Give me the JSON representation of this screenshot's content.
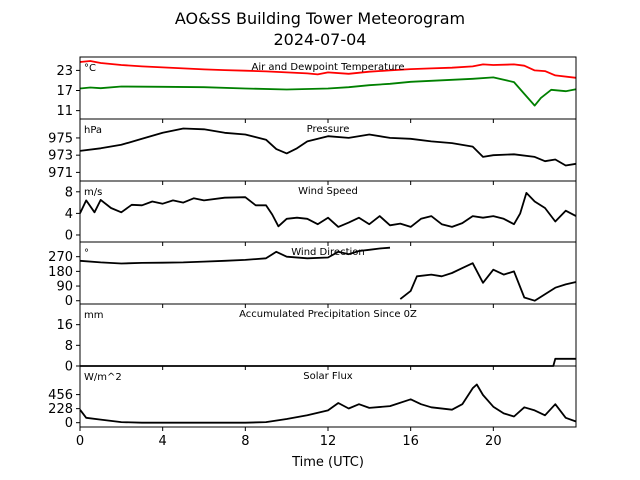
{
  "title_line1": "AO&SS Building Tower Meteorogram",
  "title_line2": "2024-07-04",
  "chart_data": {
    "type": "line",
    "xlabel": "Time (UTC)",
    "xlim": [
      0,
      24
    ],
    "x_ticks": [
      0,
      4,
      8,
      12,
      16,
      20
    ],
    "panels": [
      {
        "title": "Air and Dewpoint Temperature",
        "unit": "°C",
        "ylim": [
          8.5,
          27
        ],
        "y_ticks": [
          11,
          17,
          23
        ],
        "series": [
          {
            "color": "#ff0000",
            "points": [
              [
                0,
                25.5
              ],
              [
                0.5,
                25.8
              ],
              [
                1,
                25.2
              ],
              [
                2,
                24.6
              ],
              [
                3,
                24.2
              ],
              [
                4,
                23.9
              ],
              [
                5,
                23.6
              ],
              [
                6,
                23.3
              ],
              [
                7,
                23.1
              ],
              [
                8,
                22.9
              ],
              [
                9,
                22.7
              ],
              [
                10,
                22.4
              ],
              [
                11,
                22.1
              ],
              [
                11.5,
                21.8
              ],
              [
                12,
                22.4
              ],
              [
                13,
                22.0
              ],
              [
                14,
                22.6
              ],
              [
                15,
                23.0
              ],
              [
                16,
                23.4
              ],
              [
                17,
                23.6
              ],
              [
                18,
                23.8
              ],
              [
                19,
                24.2
              ],
              [
                19.5,
                24.8
              ],
              [
                20,
                24.6
              ],
              [
                21,
                24.8
              ],
              [
                21.5,
                24.4
              ],
              [
                22,
                23.0
              ],
              [
                22.5,
                22.8
              ],
              [
                23,
                21.5
              ],
              [
                24,
                20.8
              ]
            ]
          },
          {
            "color": "#008000",
            "points": [
              [
                0,
                17.6
              ],
              [
                0.5,
                17.9
              ],
              [
                1,
                17.7
              ],
              [
                2,
                18.2
              ],
              [
                4,
                18.1
              ],
              [
                6,
                18.0
              ],
              [
                8,
                17.6
              ],
              [
                10,
                17.3
              ],
              [
                12,
                17.6
              ],
              [
                13,
                18.0
              ],
              [
                14,
                18.6
              ],
              [
                15,
                19.0
              ],
              [
                16,
                19.6
              ],
              [
                17,
                19.9
              ],
              [
                18,
                20.2
              ],
              [
                19,
                20.5
              ],
              [
                20,
                20.9
              ],
              [
                21,
                19.5
              ],
              [
                21.5,
                16.0
              ],
              [
                22,
                12.5
              ],
              [
                22.3,
                14.8
              ],
              [
                22.8,
                17.2
              ],
              [
                23.5,
                16.8
              ],
              [
                24,
                17.4
              ]
            ]
          }
        ]
      },
      {
        "title": "Pressure",
        "unit": "hPa",
        "ylim": [
          970,
          977.2
        ],
        "y_ticks": [
          971,
          973,
          975
        ],
        "series": [
          {
            "color": "#000000",
            "points": [
              [
                0,
                973.5
              ],
              [
                1,
                973.8
              ],
              [
                2,
                974.2
              ],
              [
                3,
                974.9
              ],
              [
                4,
                975.6
              ],
              [
                5,
                976.1
              ],
              [
                6,
                976.0
              ],
              [
                7,
                975.6
              ],
              [
                8,
                975.4
              ],
              [
                9,
                974.8
              ],
              [
                9.5,
                973.7
              ],
              [
                10,
                973.2
              ],
              [
                10.5,
                973.8
              ],
              [
                11,
                974.6
              ],
              [
                12,
                975.2
              ],
              [
                13,
                975.0
              ],
              [
                14,
                975.4
              ],
              [
                15,
                975.0
              ],
              [
                16,
                974.9
              ],
              [
                17,
                974.6
              ],
              [
                18,
                974.4
              ],
              [
                19,
                974.0
              ],
              [
                19.5,
                972.8
              ],
              [
                20,
                973.0
              ],
              [
                21,
                973.1
              ],
              [
                22,
                972.8
              ],
              [
                22.5,
                972.3
              ],
              [
                23,
                972.5
              ],
              [
                23.5,
                971.8
              ],
              [
                24,
                972.0
              ]
            ]
          }
        ]
      },
      {
        "title": "Wind Speed",
        "unit": "m/s",
        "ylim": [
          -1.3,
          10
        ],
        "y_ticks": [
          0,
          4,
          8
        ],
        "series": [
          {
            "color": "#000000",
            "points": [
              [
                0,
                4.0
              ],
              [
                0.3,
                6.4
              ],
              [
                0.7,
                4.2
              ],
              [
                1,
                6.5
              ],
              [
                1.5,
                5.0
              ],
              [
                2,
                4.2
              ],
              [
                2.5,
                5.6
              ],
              [
                3,
                5.5
              ],
              [
                3.5,
                6.2
              ],
              [
                4,
                5.8
              ],
              [
                4.5,
                6.4
              ],
              [
                5,
                6.0
              ],
              [
                5.5,
                6.8
              ],
              [
                6,
                6.4
              ],
              [
                7,
                6.9
              ],
              [
                8,
                7.0
              ],
              [
                8.5,
                5.5
              ],
              [
                9,
                5.5
              ],
              [
                9.3,
                3.8
              ],
              [
                9.6,
                1.6
              ],
              [
                10,
                3.0
              ],
              [
                10.5,
                3.2
              ],
              [
                11,
                3.0
              ],
              [
                11.5,
                2.0
              ],
              [
                12,
                3.2
              ],
              [
                12.5,
                1.5
              ],
              [
                13,
                2.3
              ],
              [
                13.5,
                3.2
              ],
              [
                14,
                2.0
              ],
              [
                14.5,
                3.5
              ],
              [
                15,
                1.8
              ],
              [
                15.5,
                2.1
              ],
              [
                16,
                1.5
              ],
              [
                16.5,
                3.0
              ],
              [
                17,
                3.5
              ],
              [
                17.5,
                2.0
              ],
              [
                18,
                1.5
              ],
              [
                18.5,
                2.2
              ],
              [
                19,
                3.5
              ],
              [
                19.5,
                3.2
              ],
              [
                20,
                3.5
              ],
              [
                20.5,
                3.0
              ],
              [
                21,
                2.0
              ],
              [
                21.3,
                4.0
              ],
              [
                21.6,
                7.8
              ],
              [
                22,
                6.2
              ],
              [
                22.5,
                5.0
              ],
              [
                23,
                2.5
              ],
              [
                23.5,
                4.5
              ],
              [
                24,
                3.5
              ]
            ]
          }
        ]
      },
      {
        "title": "Wind Direction",
        "unit": "°",
        "ylim": [
          -20,
          360
        ],
        "y_ticks": [
          0,
          90,
          180,
          270
        ],
        "series": [
          {
            "color": "#000000",
            "points": [
              [
                0,
                245
              ],
              [
                1,
                235
              ],
              [
                2,
                228
              ],
              [
                3,
                232
              ],
              [
                4,
                233
              ],
              [
                5,
                235
              ],
              [
                6,
                240
              ],
              [
                7,
                245
              ],
              [
                8,
                250
              ],
              [
                9,
                260
              ],
              [
                9.5,
                300
              ],
              [
                10,
                270
              ],
              [
                11,
                260
              ],
              [
                12,
                265
              ],
              [
                12.5,
                300
              ],
              [
                13,
                285
              ],
              [
                13.5,
                305
              ],
              [
                14,
                312
              ],
              [
                14.5,
                320
              ],
              [
                15,
                325
              ]
            ]
          },
          {
            "color": "#000000",
            "points": [
              [
                15.5,
                10
              ],
              [
                16,
                60
              ],
              [
                16.3,
                150
              ],
              [
                17,
                160
              ],
              [
                17.5,
                150
              ],
              [
                18,
                170
              ],
              [
                18.5,
                200
              ],
              [
                19,
                230
              ],
              [
                19.5,
                110
              ],
              [
                20,
                190
              ],
              [
                20.5,
                160
              ],
              [
                21,
                180
              ],
              [
                21.5,
                20
              ],
              [
                22,
                0
              ],
              [
                22.5,
                40
              ],
              [
                23,
                80
              ],
              [
                23.5,
                100
              ],
              [
                24,
                115
              ]
            ]
          }
        ]
      },
      {
        "title": "Accumulated Precipitation Since 0Z",
        "unit": "mm",
        "ylim": [
          0,
          24
        ],
        "y_ticks": [
          0,
          8,
          16
        ],
        "series": [
          {
            "color": "#000000",
            "points": [
              [
                0,
                0
              ],
              [
                22.9,
                0
              ],
              [
                23.0,
                2.8
              ],
              [
                24,
                2.8
              ]
            ]
          }
        ]
      },
      {
        "title": "Solar Flux",
        "unit": "W/m^2",
        "ylim": [
          -70,
          920
        ],
        "y_ticks": [
          0,
          228,
          456
        ],
        "series": [
          {
            "color": "#000000",
            "points": [
              [
                0,
                210
              ],
              [
                0.3,
                80
              ],
              [
                1,
                50
              ],
              [
                2,
                10
              ],
              [
                3,
                0
              ],
              [
                8,
                0
              ],
              [
                9,
                10
              ],
              [
                10,
                60
              ],
              [
                11,
                120
              ],
              [
                12,
                200
              ],
              [
                12.5,
                320
              ],
              [
                13,
                230
              ],
              [
                13.5,
                300
              ],
              [
                14,
                240
              ],
              [
                15,
                270
              ],
              [
                16,
                380
              ],
              [
                16.5,
                300
              ],
              [
                17,
                250
              ],
              [
                18,
                210
              ],
              [
                18.5,
                300
              ],
              [
                19,
                560
              ],
              [
                19.2,
                620
              ],
              [
                19.5,
                450
              ],
              [
                20,
                260
              ],
              [
                20.5,
                150
              ],
              [
                21,
                100
              ],
              [
                21.5,
                250
              ],
              [
                22,
                200
              ],
              [
                22.5,
                120
              ],
              [
                23,
                300
              ],
              [
                23.5,
                80
              ],
              [
                24,
                20
              ]
            ]
          }
        ]
      }
    ]
  }
}
